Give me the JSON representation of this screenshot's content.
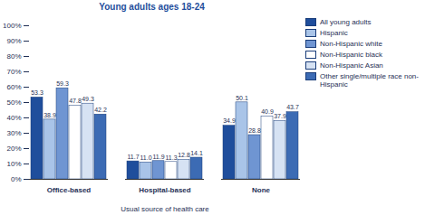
{
  "chart_data": {
    "type": "bar",
    "title": "Young adults ages 18-24",
    "x_label": "Usual source of health care",
    "categories": [
      "Office-based",
      "Hospital-based",
      "None"
    ],
    "series": [
      {
        "name": "All young adults",
        "color": "#1f4e9c",
        "values": [
          53.3,
          11.7,
          34.9
        ],
        "value_labels": [
          "53.3",
          "11.7",
          "34.9"
        ]
      },
      {
        "name": "Hispanic",
        "color": "#a9c4e8",
        "values": [
          38.9,
          11.0,
          50.1
        ],
        "value_labels": [
          "38.9",
          "11.0",
          "50.1"
        ]
      },
      {
        "name": "Non-Hispanic white",
        "color": "#6f95d2",
        "values": [
          59.3,
          11.9,
          28.8
        ],
        "value_labels": [
          "59.3",
          "11.9",
          "28.8"
        ]
      },
      {
        "name": "Non-Hispanic black",
        "color": "#ffffff",
        "values": [
          47.8,
          11.3,
          40.9
        ],
        "value_labels": [
          "47.8",
          "11.3",
          "40.9"
        ]
      },
      {
        "name": "Non-Hispanic Asian",
        "color": "#d6e2f3",
        "values": [
          49.3,
          12.8,
          37.9
        ],
        "value_labels": [
          "49.3",
          "12.8",
          "37.9"
        ]
      },
      {
        "name": "Other single/multiple race non-Hispanic",
        "color": "#3c6bb4",
        "values": [
          42.2,
          14.1,
          43.7
        ],
        "value_labels": [
          "42.2",
          "14.1",
          "43.7"
        ]
      }
    ],
    "ylim": [
      0,
      100
    ],
    "yticks": [
      {
        "value": 0,
        "label": "0%"
      },
      {
        "value": 10,
        "label": "10%"
      },
      {
        "value": 20,
        "label": "20%"
      },
      {
        "value": 30,
        "label": "30%"
      },
      {
        "value": 40,
        "label": "40%"
      },
      {
        "value": 50,
        "label": "50%"
      },
      {
        "value": 60,
        "label": "60%"
      },
      {
        "value": 70,
        "label": "70%"
      },
      {
        "value": 80,
        "label": "80%"
      },
      {
        "value": 90,
        "label": "90%"
      },
      {
        "value": 100,
        "label": "100%"
      }
    ],
    "grid": false,
    "legend": "right",
    "data_labels": true
  }
}
